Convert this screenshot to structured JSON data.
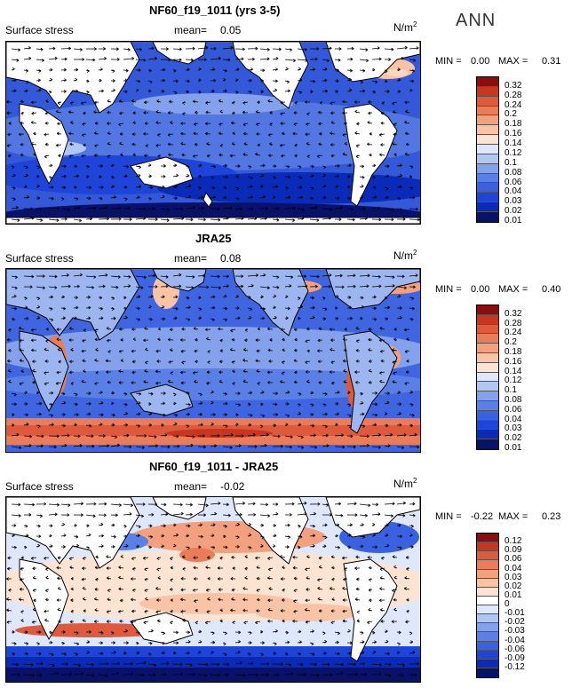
{
  "season": "ANN",
  "colors": {
    "seq": [
      "#08126b",
      "#0a2bb8",
      "#1f45d8",
      "#3a62e0",
      "#5a80e6",
      "#84a2ec",
      "#b1c6f3",
      "#dfe8fb",
      "#fde4d2",
      "#f9c4a6",
      "#f3a07e",
      "#ea7c5a",
      "#de5a3d",
      "#c8361f",
      "#8c0d0d"
    ],
    "diff": [
      "#08126b",
      "#0a2bb8",
      "#1f45d8",
      "#3a62e0",
      "#5a80e6",
      "#84a2ec",
      "#b1c6f3",
      "#dfe8fb",
      "#ffffff",
      "#fde4d2",
      "#f9c4a6",
      "#f3a07e",
      "#ea7c5a",
      "#de5a3d",
      "#c8361f",
      "#8c0d0d"
    ]
  },
  "panels": [
    {
      "title": "NF60_f19_1011 (yrs 3-5)",
      "field_label": "Surface stress",
      "mean_label": "mean=",
      "mean_value": "0.05",
      "units": "N/m",
      "units_power": "2",
      "min_label": "MIN =",
      "min_value": "0.00",
      "max_label": "MAX =",
      "max_value": "0.31",
      "levels": [
        "0.32",
        "0.28",
        "0.24",
        "0.2",
        "0.18",
        "0.16",
        "0.14",
        "0.12",
        "0.1",
        "0.08",
        "0.06",
        "0.04",
        "0.03",
        "0.02",
        "0.01"
      ]
    },
    {
      "title": "JRA25",
      "field_label": "Surface stress",
      "mean_label": "mean=",
      "mean_value": "0.08",
      "units": "N/m",
      "units_power": "2",
      "min_label": "MIN =",
      "min_value": "0.00",
      "max_label": "MAX =",
      "max_value": "0.40",
      "levels": [
        "0.32",
        "0.28",
        "0.24",
        "0.2",
        "0.18",
        "0.16",
        "0.14",
        "0.12",
        "0.1",
        "0.08",
        "0.06",
        "0.04",
        "0.03",
        "0.02",
        "0.01"
      ]
    },
    {
      "title": "NF60_f19_1011 - JRA25",
      "field_label": "Surface stress",
      "mean_label": "mean=",
      "mean_value": "-0.02",
      "units": "N/m",
      "units_power": "2",
      "min_label": "MIN =",
      "min_value": "-0.22",
      "max_label": "MAX =",
      "max_value": "0.23",
      "levels": [
        "0.12",
        "0.09",
        "0.06",
        "0.04",
        "0.03",
        "0.02",
        "0.01",
        "0",
        "-0.01",
        "-0.02",
        "-0.03",
        "-0.04",
        "-0.06",
        "-0.09",
        "-0.12"
      ]
    }
  ]
}
